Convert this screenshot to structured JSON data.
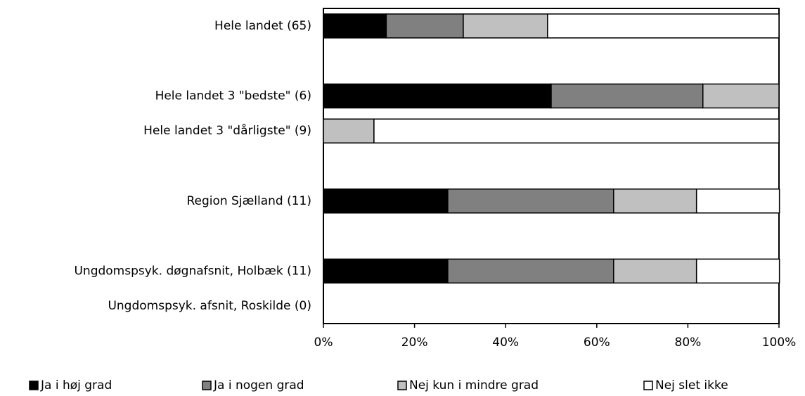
{
  "chart_data": {
    "type": "stacked_bar_horizontal",
    "categories": [
      "Hele landet  (65)",
      null,
      "Hele landet 3 \"bedste\" (6)",
      "Hele landet 3 \"dårligste\" (9)",
      null,
      "Region Sjælland (11)",
      null,
      "Ungdomspsyk. døgnafsnit, Holbæk (11)",
      "Ungdomspsyk. afsnit, Roskilde (0)"
    ],
    "series": [
      {
        "name": "Ja i høj grad",
        "color": "#000000",
        "values": [
          13.8,
          null,
          50,
          0,
          null,
          27.3,
          null,
          27.3,
          0
        ]
      },
      {
        "name": "Ja i nogen grad",
        "color": "#808080",
        "values": [
          16.9,
          null,
          33.3,
          0,
          null,
          36.4,
          null,
          36.4,
          0
        ]
      },
      {
        "name": "Nej kun i mindre grad",
        "color": "#c0c0c0",
        "values": [
          18.5,
          null,
          16.7,
          11.1,
          null,
          18.2,
          null,
          18.2,
          0
        ]
      },
      {
        "name": "Nej slet ikke",
        "color": "#ffffff",
        "values": [
          50.8,
          null,
          0,
          88.9,
          null,
          18.2,
          null,
          18.2,
          0
        ]
      }
    ],
    "xlim": [
      0,
      100
    ],
    "xticks": [
      {
        "value": 0,
        "label": "0%"
      },
      {
        "value": 20,
        "label": "20%"
      },
      {
        "value": 40,
        "label": "40%"
      },
      {
        "value": 60,
        "label": "60%"
      },
      {
        "value": 80,
        "label": "80%"
      },
      {
        "value": 100,
        "label": "100%"
      }
    ],
    "legend": "bottom"
  }
}
